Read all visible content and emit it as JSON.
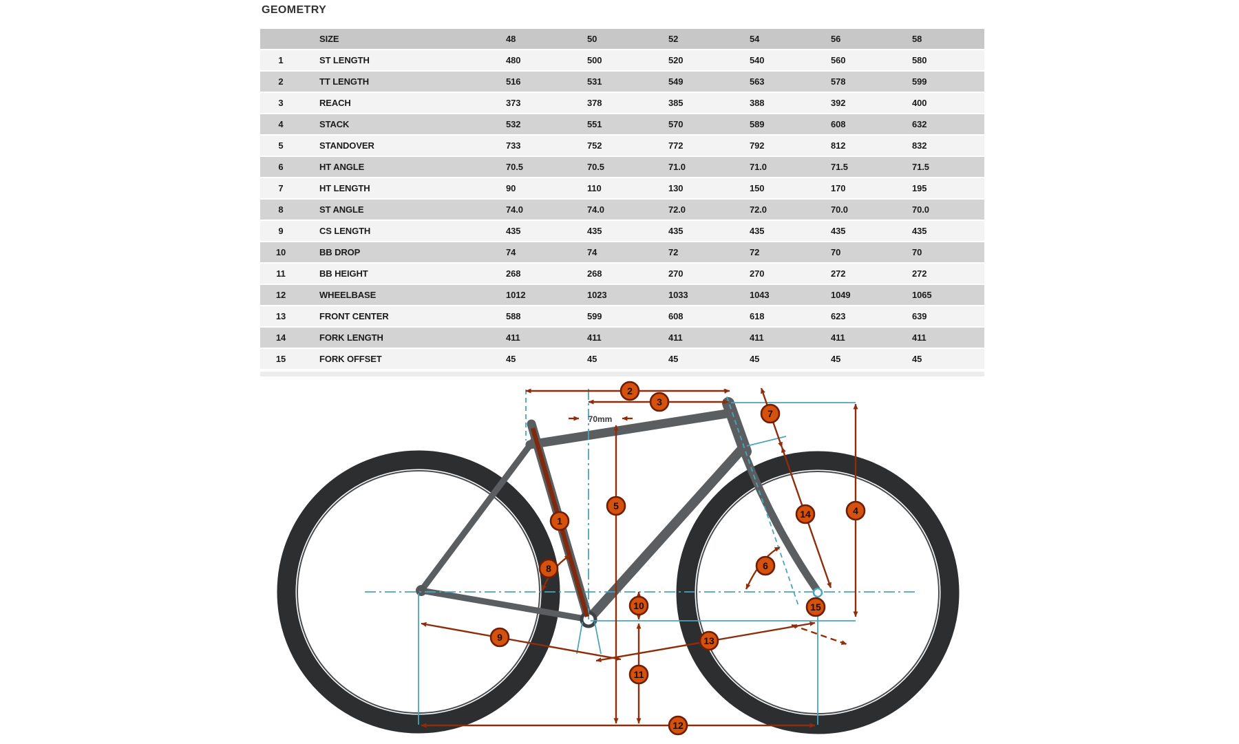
{
  "page": {
    "title": "GEOMETRY"
  },
  "table": {
    "columns": [
      "",
      "SIZE",
      "48",
      "50",
      "52",
      "54",
      "56",
      "58"
    ],
    "rows": [
      {
        "num": "1",
        "label": "ST LENGTH",
        "values": [
          "480",
          "500",
          "520",
          "540",
          "560",
          "580"
        ]
      },
      {
        "num": "2",
        "label": "TT LENGTH",
        "values": [
          "516",
          "531",
          "549",
          "563",
          "578",
          "599"
        ]
      },
      {
        "num": "3",
        "label": "REACH",
        "values": [
          "373",
          "378",
          "385",
          "388",
          "392",
          "400"
        ]
      },
      {
        "num": "4",
        "label": "STACK",
        "values": [
          "532",
          "551",
          "570",
          "589",
          "608",
          "632"
        ]
      },
      {
        "num": "5",
        "label": "STANDOVER",
        "values": [
          "733",
          "752",
          "772",
          "792",
          "812",
          "832"
        ]
      },
      {
        "num": "6",
        "label": "HT ANGLE",
        "values": [
          "70.5",
          "70.5",
          "71.0",
          "71.0",
          "71.5",
          "71.5"
        ]
      },
      {
        "num": "7",
        "label": "HT LENGTH",
        "values": [
          "90",
          "110",
          "130",
          "150",
          "170",
          "195"
        ]
      },
      {
        "num": "8",
        "label": "ST ANGLE",
        "values": [
          "74.0",
          "74.0",
          "72.0",
          "72.0",
          "70.0",
          "70.0"
        ]
      },
      {
        "num": "9",
        "label": "CS LENGTH",
        "values": [
          "435",
          "435",
          "435",
          "435",
          "435",
          "435"
        ]
      },
      {
        "num": "10",
        "label": "BB DROP",
        "values": [
          "74",
          "74",
          "72",
          "72",
          "70",
          "70"
        ]
      },
      {
        "num": "11",
        "label": "BB HEIGHT",
        "values": [
          "268",
          "268",
          "270",
          "270",
          "272",
          "272"
        ]
      },
      {
        "num": "12",
        "label": "WHEELBASE",
        "values": [
          "1012",
          "1023",
          "1033",
          "1043",
          "1049",
          "1065"
        ]
      },
      {
        "num": "13",
        "label": "FRONT CENTER",
        "values": [
          "588",
          "599",
          "608",
          "618",
          "623",
          "639"
        ]
      },
      {
        "num": "14",
        "label": "FORK LENGTH",
        "values": [
          "411",
          "411",
          "411",
          "411",
          "411",
          "411"
        ]
      },
      {
        "num": "15",
        "label": "FORK OFFSET",
        "values": [
          "45",
          "45",
          "45",
          "45",
          "45",
          "45"
        ]
      }
    ]
  },
  "diagram": {
    "annotation_70mm": "70mm",
    "callouts": [
      {
        "n": "1",
        "measure": "ST LENGTH"
      },
      {
        "n": "2",
        "measure": "TT LENGTH"
      },
      {
        "n": "3",
        "measure": "REACH"
      },
      {
        "n": "4",
        "measure": "STACK"
      },
      {
        "n": "5",
        "measure": "STANDOVER"
      },
      {
        "n": "6",
        "measure": "HT ANGLE"
      },
      {
        "n": "7",
        "measure": "HT LENGTH"
      },
      {
        "n": "8",
        "measure": "ST ANGLE"
      },
      {
        "n": "9",
        "measure": "CS LENGTH"
      },
      {
        "n": "10",
        "measure": "BB DROP"
      },
      {
        "n": "11",
        "measure": "BB HEIGHT"
      },
      {
        "n": "12",
        "measure": "WHEELBASE"
      },
      {
        "n": "13",
        "measure": "FRONT CENTER"
      },
      {
        "n": "14",
        "measure": "FORK LENGTH"
      },
      {
        "n": "15",
        "measure": "FORK OFFSET"
      }
    ],
    "colors": {
      "dimension_line": "#8e2d0a",
      "callout_fill": "#d5520e",
      "callout_border": "#6f1d04",
      "construction_line": "#4aa4ba",
      "frame": "#5b5e61",
      "tire": "#2c2e30",
      "header_row": "#c7c7c7",
      "row_dark": "#d3d3d3",
      "row_light": "#f3f3f3"
    }
  }
}
